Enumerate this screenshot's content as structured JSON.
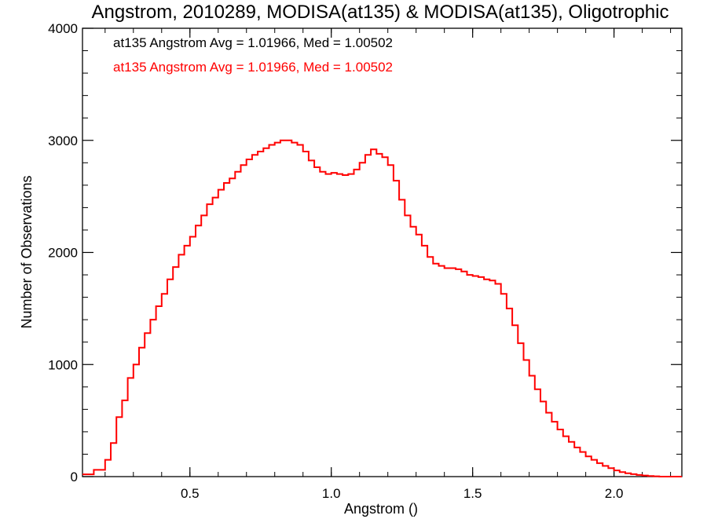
{
  "chart_data": {
    "type": "line",
    "step": true,
    "title": "Angstrom, 2010289, MODISA(at135) & MODISA(at135), Oligotrophic",
    "xlabel": "Angstrom ()",
    "ylabel": "Number of Observations",
    "xlim": [
      0.12,
      2.24
    ],
    "ylim": [
      0,
      4000
    ],
    "xticks": [
      0.5,
      1.0,
      1.5,
      2.0
    ],
    "xtick_labels": [
      "0.5",
      "1.0",
      "1.5",
      "2.0"
    ],
    "yticks": [
      0,
      1000,
      2000,
      3000,
      4000
    ],
    "ytick_labels": [
      "0",
      "1000",
      "2000",
      "3000",
      "4000"
    ],
    "grid": false,
    "annotations": [
      {
        "text": "at135 Angstrom Avg = 1.01966, Med = 1.00502",
        "color": "#000000"
      },
      {
        "text": "at135 Angstrom Avg = 1.01966, Med = 1.00502",
        "color": "#ff0000"
      }
    ],
    "series": [
      {
        "color": "#ff0000",
        "x": [
          0.12,
          0.16,
          0.2,
          0.22,
          0.24,
          0.26,
          0.28,
          0.3,
          0.32,
          0.34,
          0.36,
          0.38,
          0.4,
          0.42,
          0.44,
          0.46,
          0.48,
          0.5,
          0.52,
          0.54,
          0.56,
          0.58,
          0.6,
          0.62,
          0.64,
          0.66,
          0.68,
          0.7,
          0.72,
          0.74,
          0.76,
          0.78,
          0.8,
          0.82,
          0.84,
          0.86,
          0.88,
          0.9,
          0.92,
          0.94,
          0.96,
          0.98,
          1.0,
          1.02,
          1.04,
          1.06,
          1.08,
          1.1,
          1.12,
          1.14,
          1.16,
          1.18,
          1.2,
          1.22,
          1.24,
          1.26,
          1.28,
          1.3,
          1.32,
          1.34,
          1.36,
          1.38,
          1.4,
          1.42,
          1.44,
          1.46,
          1.48,
          1.5,
          1.52,
          1.54,
          1.56,
          1.58,
          1.6,
          1.62,
          1.64,
          1.66,
          1.68,
          1.7,
          1.72,
          1.74,
          1.76,
          1.78,
          1.8,
          1.82,
          1.84,
          1.86,
          1.88,
          1.9,
          1.92,
          1.94,
          1.96,
          1.98,
          2.0,
          2.02,
          2.04,
          2.06,
          2.08,
          2.1,
          2.12,
          2.14,
          2.16,
          2.18,
          2.2,
          2.24
        ],
        "values": [
          20,
          60,
          150,
          300,
          530,
          680,
          880,
          1000,
          1150,
          1280,
          1400,
          1520,
          1630,
          1760,
          1870,
          1980,
          2060,
          2140,
          2240,
          2330,
          2430,
          2490,
          2560,
          2620,
          2660,
          2720,
          2780,
          2830,
          2870,
          2900,
          2930,
          2960,
          2980,
          3000,
          3000,
          2980,
          2960,
          2900,
          2820,
          2760,
          2720,
          2700,
          2710,
          2700,
          2690,
          2700,
          2740,
          2800,
          2870,
          2920,
          2880,
          2850,
          2780,
          2640,
          2470,
          2330,
          2230,
          2160,
          2060,
          1960,
          1900,
          1880,
          1860,
          1860,
          1850,
          1830,
          1800,
          1790,
          1780,
          1760,
          1750,
          1720,
          1630,
          1500,
          1350,
          1190,
          1040,
          900,
          780,
          670,
          570,
          490,
          420,
          360,
          310,
          260,
          220,
          180,
          150,
          120,
          95,
          75,
          55,
          40,
          30,
          22,
          15,
          10,
          5,
          3,
          0,
          0,
          0,
          0
        ]
      }
    ]
  }
}
